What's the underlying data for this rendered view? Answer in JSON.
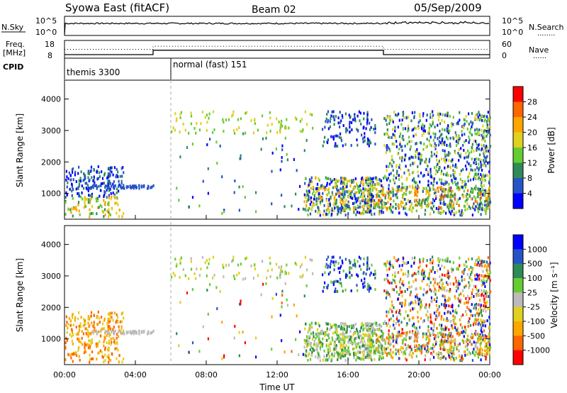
{
  "header": {
    "title": "Syowa East (fitACF)",
    "beam": "Beam 02",
    "date": "05/Sep/2009"
  },
  "chart_data": [
    {
      "type": "line",
      "panel": "noise",
      "left_label": "N.Sky",
      "right_label": "N.Search",
      "right_legend_marker": "........",
      "left_ticks": [
        "10^5",
        "10^0"
      ],
      "right_ticks": [
        "10^5",
        "10^0"
      ],
      "series": [
        {
          "name": "N.Sky",
          "style": "solid"
        },
        {
          "name": "N.Search",
          "style": "dotted"
        }
      ]
    },
    {
      "type": "line",
      "panel": "frequency",
      "left_label_line1": "Freq.",
      "left_label_line2": "[MHz]",
      "right_label": "Nave",
      "right_legend_marker": "......",
      "left_ticks": [
        "18",
        "8"
      ],
      "right_ticks": [
        "60",
        "0"
      ],
      "ylim_freq": [
        8,
        18
      ],
      "ylim_nave": [
        0,
        60
      ],
      "series": [
        {
          "name": "Freq.",
          "style": "solid",
          "x": [
            0,
            5,
            5,
            18,
            18,
            24
          ],
          "y": [
            10,
            10,
            12.5,
            12.5,
            10,
            10
          ]
        },
        {
          "name": "Nave",
          "style": "dotted",
          "x": [
            0,
            5,
            5,
            18,
            18,
            24
          ],
          "y": [
            30,
            30,
            40,
            40,
            30,
            30
          ]
        }
      ]
    },
    {
      "type": "table",
      "panel": "cpid",
      "label": "CPID",
      "segments": [
        {
          "name": "themis 3300",
          "start": 0,
          "end": 6
        },
        {
          "name": "normal (fast) 151",
          "start": 6,
          "end": 24
        }
      ]
    },
    {
      "type": "heatmap",
      "panel": "power",
      "ylabel": "Slant Range [km]",
      "xlabel": "",
      "yticks": [
        1000,
        2000,
        3000,
        4000
      ],
      "ylim": [
        180,
        4600
      ],
      "xlim": [
        0,
        24
      ],
      "colorbar_label": "Power [dB]",
      "colorbar_ticks": [
        "4",
        "8",
        "12",
        "16",
        "20",
        "24",
        "28"
      ],
      "colorbar_colors": [
        "#0000ff",
        "#2653c8",
        "#2e8b57",
        "#66cc33",
        "#e0d020",
        "#ffa500",
        "#ff6600",
        "#ff0000"
      ]
    },
    {
      "type": "heatmap",
      "panel": "velocity",
      "ylabel": "Slant Range [km]",
      "xlabel": "Time UT",
      "yticks": [
        1000,
        2000,
        3000,
        4000
      ],
      "ylim": [
        180,
        4600
      ],
      "xlim": [
        0,
        24
      ],
      "xticks": [
        "00:00",
        "04:00",
        "08:00",
        "12:00",
        "16:00",
        "20:00",
        "00:00"
      ],
      "colorbar_label": "Velocity [m s⁻¹]",
      "colorbar_ticks": [
        "1000",
        "500",
        "100",
        "25",
        "-25",
        "-100",
        "-500",
        "-1000"
      ],
      "colorbar_colors": [
        "#0000ff",
        "#2653c8",
        "#2e8b57",
        "#66cc33",
        "#bbbbbb",
        "#e0d020",
        "#ffa500",
        "#ff6600",
        "#ff0000"
      ]
    }
  ]
}
